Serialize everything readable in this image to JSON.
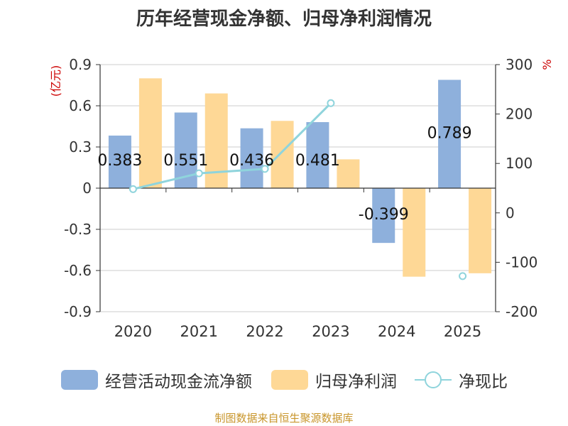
{
  "title": "历年经营现金净额、归母净利润情况",
  "source": "制图数据来自恒生聚源数据库",
  "colors": {
    "cash_flow": "#8eb0dc",
    "net_profit": "#fed896",
    "ratio": "#8fd4dc",
    "axis_unit": "#cc0000",
    "grid": "#cccccc",
    "axis": "#333333"
  },
  "chart_data": {
    "type": "bar",
    "title": "历年经营现金净额、归母净利润情况",
    "categories": [
      "2020",
      "2021",
      "2022",
      "2023",
      "2024",
      "2025"
    ],
    "y_left": {
      "label": "(亿元)",
      "ylim": [
        -0.9,
        0.9
      ],
      "ticks": [
        0.9,
        0.6,
        0.3,
        0,
        -0.3,
        -0.6,
        -0.9
      ],
      "tick_labels": [
        "0.9",
        "0.6",
        "0.3",
        "0",
        "-0.3",
        "-0.6",
        "-0.9"
      ]
    },
    "y_right": {
      "label": "%",
      "ylim": [
        -200,
        300
      ],
      "ticks": [
        300,
        200,
        100,
        0,
        -100,
        -200
      ],
      "tick_labels": [
        "300",
        "200",
        "100",
        "0",
        "-100",
        "-200"
      ]
    },
    "series": [
      {
        "name": "经营活动现金流净额",
        "type": "bar",
        "axis": "left",
        "values": [
          0.383,
          0.551,
          0.436,
          0.481,
          -0.399,
          0.789
        ],
        "labels": [
          "0.383",
          "0.551",
          "0.436",
          "0.481",
          "-0.399",
          "0.789"
        ]
      },
      {
        "name": "归母净利润",
        "type": "bar",
        "axis": "left",
        "values": [
          0.8,
          0.69,
          0.49,
          0.21,
          -0.645,
          -0.62
        ]
      },
      {
        "name": "净现比",
        "type": "line",
        "axis": "right",
        "values": [
          48,
          80,
          89,
          222,
          null,
          -128
        ]
      }
    ]
  }
}
